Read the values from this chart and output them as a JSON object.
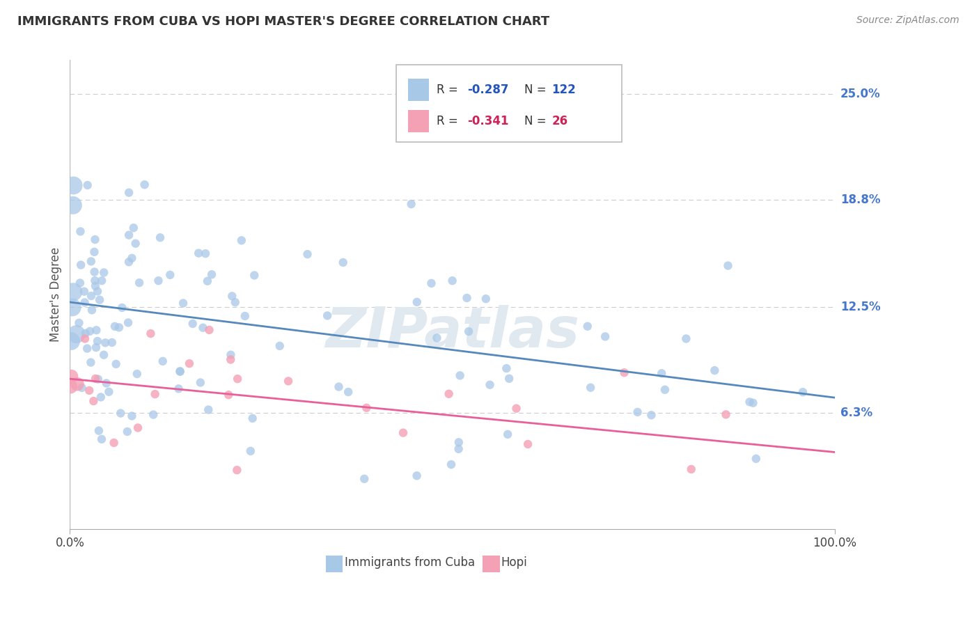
{
  "title": "IMMIGRANTS FROM CUBA VS HOPI MASTER'S DEGREE CORRELATION CHART",
  "source": "Source: ZipAtlas.com",
  "ylabel": "Master's Degree",
  "watermark": "ZIPatlas",
  "xlim": [
    0.0,
    1.0
  ],
  "ylim": [
    -0.005,
    0.27
  ],
  "ytick_labels": [
    "6.3%",
    "12.5%",
    "18.8%",
    "25.0%"
  ],
  "ytick_values": [
    0.063,
    0.125,
    0.188,
    0.25
  ],
  "legend_label1": "Immigrants from Cuba",
  "legend_label2": "Hopi",
  "color_blue": "#a8c8e8",
  "color_pink": "#f4a0b5",
  "line_color_blue": "#5588bb",
  "line_color_pink": "#e8609a",
  "background_color": "#ffffff",
  "grid_color": "#cccccc",
  "ytick_label_color": "#4477cc",
  "r_color_blue": "#2255bb",
  "r_color_pink": "#cc2255",
  "blue_line_y0": 0.128,
  "blue_line_y1": 0.072,
  "pink_line_y0": 0.083,
  "pink_line_y1": 0.04
}
